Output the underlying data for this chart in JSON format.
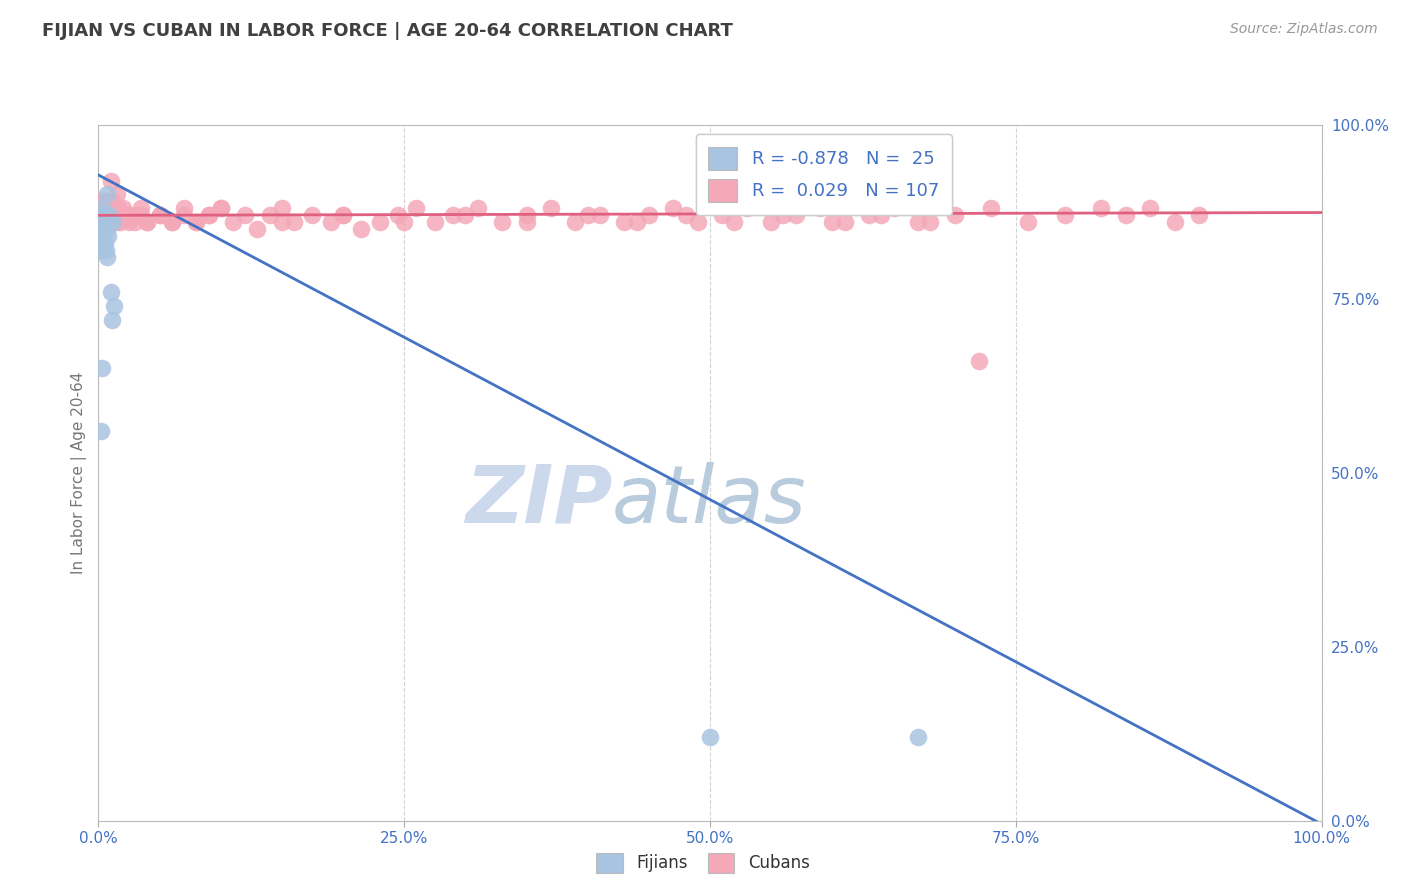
{
  "title": "FIJIAN VS CUBAN IN LABOR FORCE | AGE 20-64 CORRELATION CHART",
  "source_text": "Source: ZipAtlas.com",
  "ylabel": "In Labor Force | Age 20-64",
  "fijian_R": -0.878,
  "fijian_N": 25,
  "cuban_R": 0.029,
  "cuban_N": 107,
  "fijian_color": "#a8c4e0",
  "cuban_color": "#f4a8b8",
  "fijian_line_color": "#4472c4",
  "cuban_line_color": "#e06080",
  "watermark_zip_color": "#ccdaee",
  "watermark_atlas_color": "#b8ccdd",
  "background_color": "#ffffff",
  "grid_color": "#c8c8c8",
  "axis_label_color": "#4472c4",
  "title_color": "#404040",
  "fijian_x": [
    0.001,
    0.002,
    0.002,
    0.003,
    0.003,
    0.004,
    0.004,
    0.005,
    0.005,
    0.006,
    0.006,
    0.007,
    0.007,
    0.008,
    0.008,
    0.009,
    0.01,
    0.011,
    0.012,
    0.013,
    0.5,
    0.67,
    0.007,
    0.003,
    0.002
  ],
  "fijian_y": [
    0.86,
    0.84,
    0.87,
    0.82,
    0.88,
    0.85,
    0.86,
    0.83,
    0.87,
    0.82,
    0.86,
    0.81,
    0.85,
    0.84,
    0.86,
    0.87,
    0.76,
    0.72,
    0.86,
    0.74,
    0.12,
    0.12,
    0.9,
    0.65,
    0.56
  ],
  "cuban_x": [
    0.001,
    0.002,
    0.002,
    0.003,
    0.003,
    0.004,
    0.004,
    0.005,
    0.005,
    0.006,
    0.006,
    0.007,
    0.007,
    0.008,
    0.008,
    0.009,
    0.009,
    0.01,
    0.01,
    0.011,
    0.012,
    0.013,
    0.014,
    0.015,
    0.016,
    0.018,
    0.02,
    0.025,
    0.03,
    0.035,
    0.04,
    0.05,
    0.06,
    0.07,
    0.08,
    0.09,
    0.1,
    0.11,
    0.12,
    0.13,
    0.14,
    0.15,
    0.16,
    0.175,
    0.19,
    0.2,
    0.215,
    0.23,
    0.245,
    0.26,
    0.275,
    0.29,
    0.31,
    0.33,
    0.35,
    0.37,
    0.39,
    0.41,
    0.43,
    0.45,
    0.47,
    0.49,
    0.51,
    0.53,
    0.55,
    0.57,
    0.59,
    0.61,
    0.63,
    0.65,
    0.67,
    0.7,
    0.73,
    0.76,
    0.79,
    0.82,
    0.84,
    0.86,
    0.88,
    0.9,
    0.01,
    0.015,
    0.02,
    0.025,
    0.03,
    0.035,
    0.04,
    0.05,
    0.06,
    0.07,
    0.08,
    0.09,
    0.1,
    0.15,
    0.2,
    0.25,
    0.3,
    0.35,
    0.4,
    0.44,
    0.48,
    0.52,
    0.56,
    0.6,
    0.64,
    0.68,
    0.72
  ],
  "cuban_y": [
    0.87,
    0.88,
    0.86,
    0.89,
    0.87,
    0.88,
    0.86,
    0.89,
    0.87,
    0.88,
    0.86,
    0.89,
    0.87,
    0.88,
    0.86,
    0.89,
    0.87,
    0.88,
    0.86,
    0.89,
    0.87,
    0.88,
    0.86,
    0.87,
    0.88,
    0.86,
    0.87,
    0.86,
    0.87,
    0.88,
    0.86,
    0.87,
    0.86,
    0.88,
    0.86,
    0.87,
    0.88,
    0.86,
    0.87,
    0.85,
    0.87,
    0.88,
    0.86,
    0.87,
    0.86,
    0.87,
    0.85,
    0.86,
    0.87,
    0.88,
    0.86,
    0.87,
    0.88,
    0.86,
    0.87,
    0.88,
    0.86,
    0.87,
    0.86,
    0.87,
    0.88,
    0.86,
    0.87,
    0.88,
    0.86,
    0.87,
    0.88,
    0.86,
    0.87,
    0.88,
    0.86,
    0.87,
    0.88,
    0.86,
    0.87,
    0.88,
    0.87,
    0.88,
    0.86,
    0.87,
    0.92,
    0.9,
    0.88,
    0.87,
    0.86,
    0.87,
    0.86,
    0.87,
    0.86,
    0.87,
    0.86,
    0.87,
    0.88,
    0.86,
    0.87,
    0.86,
    0.87,
    0.86,
    0.87,
    0.86,
    0.87,
    0.86,
    0.87,
    0.86,
    0.87,
    0.86,
    0.66
  ],
  "fijian_line_x0": 0.0,
  "fijian_line_y0": 0.928,
  "fijian_line_x1": 1.0,
  "fijian_line_y1": -0.005,
  "cuban_line_x0": 0.0,
  "cuban_line_y0": 0.87,
  "cuban_line_x1": 1.0,
  "cuban_line_y1": 0.874,
  "xlim": [
    0.0,
    1.0
  ],
  "ylim": [
    0.0,
    1.0
  ],
  "xticks": [
    0.0,
    0.25,
    0.5,
    0.75,
    1.0
  ],
  "xtick_labels": [
    "0.0%",
    "25.0%",
    "50.0%",
    "75.0%",
    "100.0%"
  ],
  "yticks_right": [
    0.0,
    0.25,
    0.5,
    0.75,
    1.0
  ],
  "ytick_labels_right": [
    "0.0%",
    "25.0%",
    "50.0%",
    "75.0%",
    "100.0%"
  ]
}
